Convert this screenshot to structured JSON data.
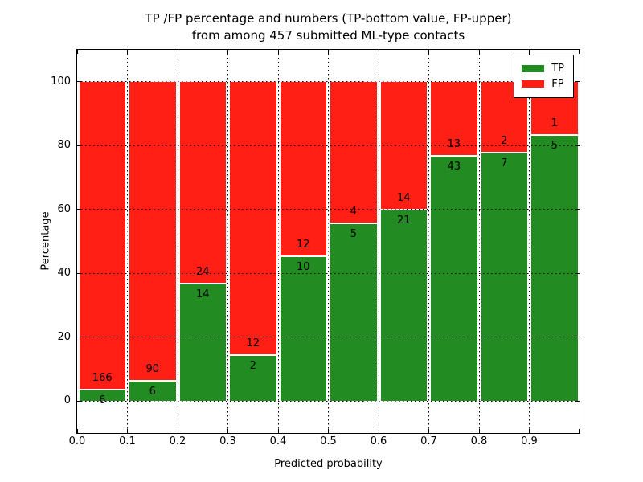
{
  "figure": {
    "title_line1": "TP /FP percentage and numbers (TP-bottom value, FP-upper)",
    "title_line2": "from among 457 submitted ML-type contacts",
    "background": "#ffffff"
  },
  "chart_data": {
    "type": "bar",
    "stacked": true,
    "normalized_to_percent": true,
    "title": "TP /FP percentage and numbers (TP-bottom value, FP-upper) from among 457 submitted ML-type contacts",
    "xlabel": "Predicted probability",
    "ylabel": "Percentage",
    "x_tick_labels": [
      "0.0",
      "0.1",
      "0.2",
      "0.3",
      "0.4",
      "0.5",
      "0.6",
      "0.7",
      "0.8",
      "0.9"
    ],
    "y_tick_values": [
      0,
      20,
      40,
      60,
      80,
      100
    ],
    "xlim": [
      0.0,
      1.0
    ],
    "ylim": [
      -10,
      110
    ],
    "grid": "dotted-black",
    "total_contacts": 457,
    "tp_color": "#228b22",
    "fp_color": "#ff1f15",
    "legend": {
      "position": "upper-right",
      "entries": [
        {
          "label": "TP",
          "color": "#228b22"
        },
        {
          "label": "FP",
          "color": "#ff1f15"
        }
      ]
    },
    "bins": [
      {
        "x_start": 0.0,
        "x_end": 0.1,
        "tp_count": 6,
        "fp_count": 166,
        "tp_percent": 3.5
      },
      {
        "x_start": 0.1,
        "x_end": 0.2,
        "tp_count": 6,
        "fp_count": 90,
        "tp_percent": 6.3
      },
      {
        "x_start": 0.2,
        "x_end": 0.3,
        "tp_count": 14,
        "fp_count": 24,
        "tp_percent": 36.8
      },
      {
        "x_start": 0.3,
        "x_end": 0.4,
        "tp_count": 2,
        "fp_count": 12,
        "tp_percent": 14.3
      },
      {
        "x_start": 0.4,
        "x_end": 0.5,
        "tp_count": 10,
        "fp_count": 12,
        "tp_percent": 45.5
      },
      {
        "x_start": 0.5,
        "x_end": 0.6,
        "tp_count": 5,
        "fp_count": 4,
        "tp_percent": 55.6
      },
      {
        "x_start": 0.6,
        "x_end": 0.7,
        "tp_count": 21,
        "fp_count": 14,
        "tp_percent": 60.0
      },
      {
        "x_start": 0.7,
        "x_end": 0.8,
        "tp_count": 43,
        "fp_count": 13,
        "tp_percent": 76.8
      },
      {
        "x_start": 0.8,
        "x_end": 0.9,
        "tp_count": 7,
        "fp_count": 2,
        "tp_percent": 77.8
      },
      {
        "x_start": 0.9,
        "x_end": 1.0,
        "tp_count": 5,
        "fp_count": 1,
        "tp_percent": 83.3
      }
    ]
  }
}
